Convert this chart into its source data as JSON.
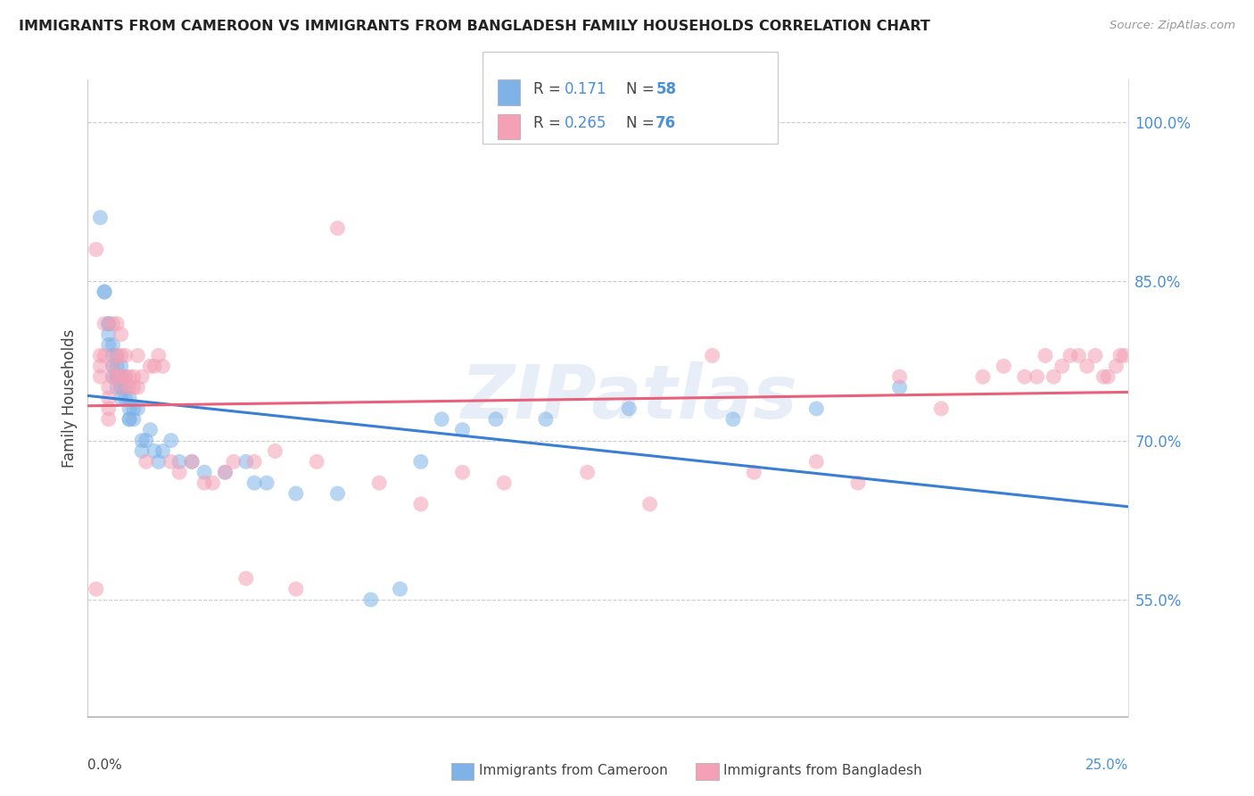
{
  "title": "IMMIGRANTS FROM CAMEROON VS IMMIGRANTS FROM BANGLADESH FAMILY HOUSEHOLDS CORRELATION CHART",
  "source": "Source: ZipAtlas.com",
  "ylabel": "Family Households",
  "yaxis_values": [
    0.55,
    0.7,
    0.85,
    1.0
  ],
  "xmin": 0.0,
  "xmax": 0.25,
  "ymin": 0.44,
  "ymax": 1.04,
  "cameroon_R": 0.171,
  "cameroon_N": 58,
  "bangladesh_R": 0.265,
  "bangladesh_N": 76,
  "cameroon_color": "#7fb3e8",
  "bangladesh_color": "#f4a0b5",
  "cameroon_line_color": "#3a7fd4",
  "bangladesh_line_color": "#e8607a",
  "watermark": "ZIPatlas",
  "cam_x": [
    0.003,
    0.004,
    0.004,
    0.005,
    0.005,
    0.005,
    0.005,
    0.006,
    0.006,
    0.006,
    0.006,
    0.007,
    0.007,
    0.007,
    0.007,
    0.007,
    0.008,
    0.008,
    0.008,
    0.008,
    0.009,
    0.009,
    0.009,
    0.01,
    0.01,
    0.01,
    0.01,
    0.011,
    0.011,
    0.012,
    0.013,
    0.013,
    0.014,
    0.015,
    0.016,
    0.017,
    0.018,
    0.02,
    0.022,
    0.025,
    0.028,
    0.033,
    0.038,
    0.04,
    0.043,
    0.05,
    0.06,
    0.068,
    0.075,
    0.08,
    0.085,
    0.09,
    0.098,
    0.11,
    0.13,
    0.155,
    0.175,
    0.195
  ],
  "cam_y": [
    0.91,
    0.84,
    0.84,
    0.81,
    0.81,
    0.8,
    0.79,
    0.79,
    0.78,
    0.77,
    0.76,
    0.78,
    0.77,
    0.76,
    0.76,
    0.75,
    0.77,
    0.76,
    0.75,
    0.74,
    0.76,
    0.75,
    0.74,
    0.74,
    0.73,
    0.72,
    0.72,
    0.73,
    0.72,
    0.73,
    0.7,
    0.69,
    0.7,
    0.71,
    0.69,
    0.68,
    0.69,
    0.7,
    0.68,
    0.68,
    0.67,
    0.67,
    0.68,
    0.66,
    0.66,
    0.65,
    0.65,
    0.55,
    0.56,
    0.68,
    0.72,
    0.71,
    0.72,
    0.72,
    0.73,
    0.72,
    0.73,
    0.75
  ],
  "ban_x": [
    0.002,
    0.002,
    0.003,
    0.003,
    0.003,
    0.004,
    0.004,
    0.005,
    0.005,
    0.005,
    0.005,
    0.006,
    0.006,
    0.006,
    0.007,
    0.007,
    0.007,
    0.008,
    0.008,
    0.008,
    0.008,
    0.009,
    0.009,
    0.01,
    0.01,
    0.011,
    0.011,
    0.012,
    0.012,
    0.013,
    0.014,
    0.015,
    0.016,
    0.017,
    0.018,
    0.02,
    0.022,
    0.025,
    0.028,
    0.03,
    0.033,
    0.035,
    0.038,
    0.04,
    0.045,
    0.05,
    0.055,
    0.06,
    0.07,
    0.08,
    0.09,
    0.1,
    0.12,
    0.135,
    0.15,
    0.16,
    0.175,
    0.185,
    0.195,
    0.205,
    0.215,
    0.22,
    0.225,
    0.228,
    0.23,
    0.232,
    0.234,
    0.236,
    0.238,
    0.24,
    0.242,
    0.244,
    0.245,
    0.247,
    0.248,
    0.249
  ],
  "ban_y": [
    0.88,
    0.56,
    0.78,
    0.77,
    0.76,
    0.81,
    0.78,
    0.75,
    0.74,
    0.73,
    0.72,
    0.81,
    0.77,
    0.76,
    0.81,
    0.78,
    0.76,
    0.8,
    0.78,
    0.76,
    0.75,
    0.78,
    0.76,
    0.76,
    0.75,
    0.76,
    0.75,
    0.78,
    0.75,
    0.76,
    0.68,
    0.77,
    0.77,
    0.78,
    0.77,
    0.68,
    0.67,
    0.68,
    0.66,
    0.66,
    0.67,
    0.68,
    0.57,
    0.68,
    0.69,
    0.56,
    0.68,
    0.9,
    0.66,
    0.64,
    0.67,
    0.66,
    0.67,
    0.64,
    0.78,
    0.67,
    0.68,
    0.66,
    0.76,
    0.73,
    0.76,
    0.77,
    0.76,
    0.76,
    0.78,
    0.76,
    0.77,
    0.78,
    0.78,
    0.77,
    0.78,
    0.76,
    0.76,
    0.77,
    0.78,
    0.78
  ]
}
